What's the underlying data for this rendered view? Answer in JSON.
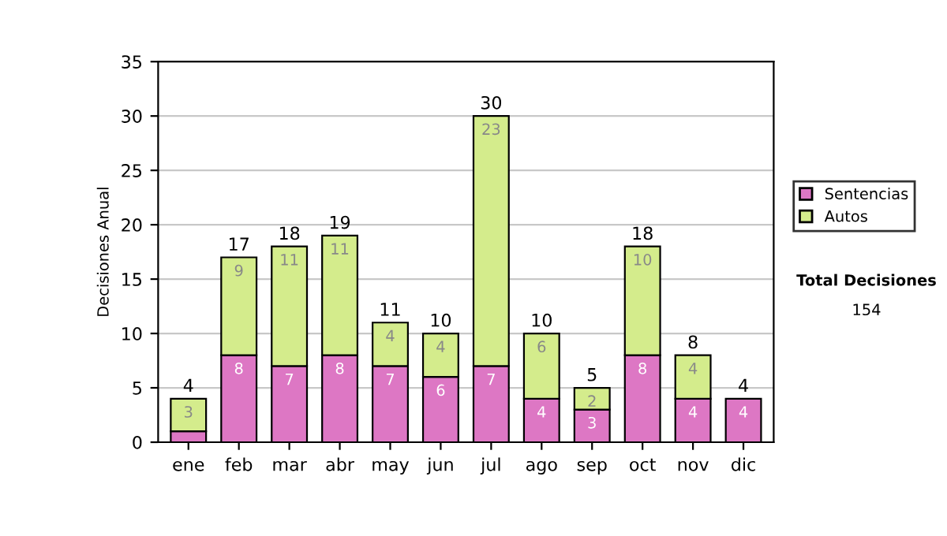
{
  "chart_data": {
    "type": "bar",
    "stacked": true,
    "ylabel": "Decisiones Anual",
    "categories": [
      "ene",
      "feb",
      "mar",
      "abr",
      "may",
      "jun",
      "jul",
      "ago",
      "sep",
      "oct",
      "nov",
      "dic"
    ],
    "series": [
      {
        "name": "Sentencias",
        "color": "#dd77c4",
        "values": [
          1,
          8,
          7,
          8,
          7,
          6,
          7,
          4,
          3,
          8,
          4,
          4
        ],
        "value_labels": [
          null,
          "8",
          "7",
          "8",
          "7",
          "6",
          "7",
          "4",
          "3",
          "8",
          "4",
          "4"
        ]
      },
      {
        "name": "Autos",
        "color": "#d4ec8c",
        "values": [
          3,
          9,
          11,
          11,
          4,
          4,
          23,
          6,
          2,
          10,
          4,
          null
        ],
        "value_labels": [
          "3",
          "9",
          "11",
          "11",
          "4",
          "4",
          "23",
          "6",
          "2",
          "10",
          "4",
          null
        ]
      }
    ],
    "totals": [
      "4",
      "17",
      "18",
      "19",
      "11",
      "10",
      "30",
      "10",
      "5",
      "18",
      "8",
      "4"
    ],
    "ylim": [
      0,
      35
    ],
    "yticks": [
      0,
      5,
      10,
      15,
      20,
      25,
      30,
      35
    ],
    "grid": "y",
    "legend": "right",
    "annotations": [
      "Total Decisiones",
      "154"
    ]
  }
}
